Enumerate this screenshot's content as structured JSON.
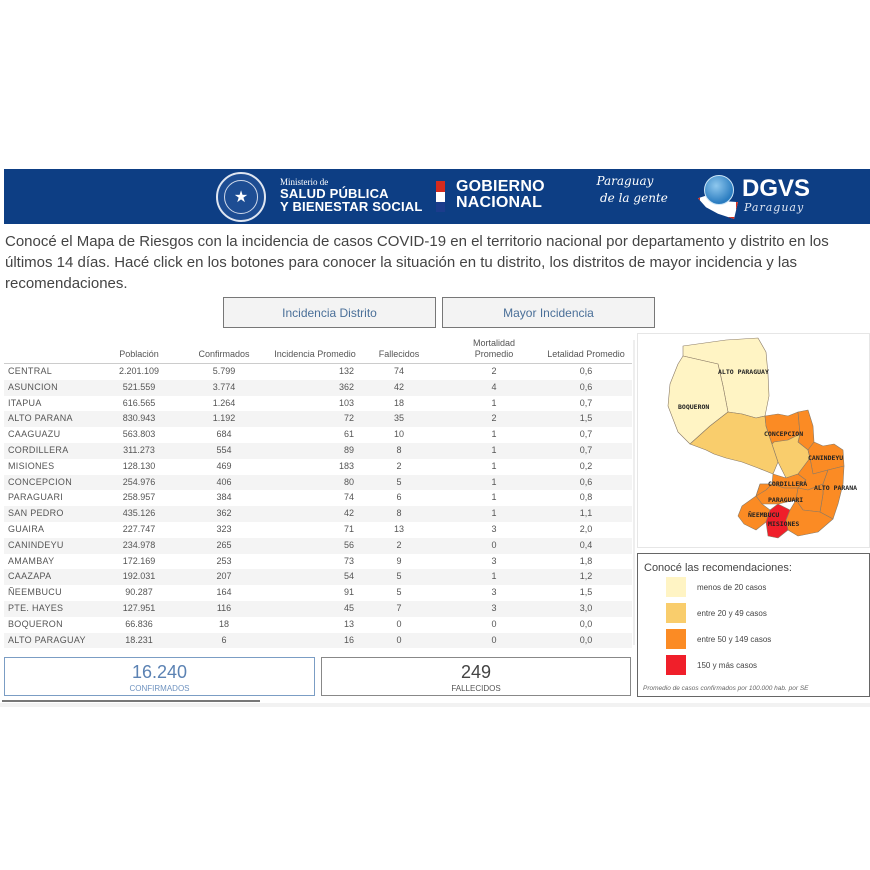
{
  "banner": {
    "ministry_small": "Ministerio de",
    "ministry_line1": "SALUD PÚBLICA",
    "ministry_line2": "Y BIENESTAR SOCIAL",
    "gobierno_line1": "GOBIERNO",
    "gobierno_line2": "NACIONAL",
    "slogan_line1": "Paraguay",
    "slogan_line2": "de la gente",
    "dgvs": "DGVS",
    "dgvs_sub": "Paraguay",
    "colors": {
      "banner_bg": "#0d3e84"
    }
  },
  "intro": "Conocé el Mapa de Riesgos con la incidencia de casos COVID-19 en el territorio nacional por departamento y distrito en los últimos 14 días. Hacé click en los botones para conocer la situación en tu distrito, los distritos de mayor incidencia y las recomendaciones.",
  "buttons": {
    "incidencia_distrito": "Incidencia Distrito",
    "mayor_incidencia": "Mayor Incidencia"
  },
  "table": {
    "headers": [
      "",
      "Población",
      "Confirmados",
      "Incidencia Promedio",
      "Fallecidos",
      "Mortalidad Promedio",
      "Letalidad Promedio"
    ],
    "rows": [
      [
        "CENTRAL",
        "2.201.109",
        "5.799",
        "132",
        "74",
        "2",
        "0,6"
      ],
      [
        "ASUNCION",
        "521.559",
        "3.774",
        "362",
        "42",
        "4",
        "0,6"
      ],
      [
        "ITAPUA",
        "616.565",
        "1.264",
        "103",
        "18",
        "1",
        "0,7"
      ],
      [
        "ALTO PARANA",
        "830.943",
        "1.192",
        "72",
        "35",
        "2",
        "1,5"
      ],
      [
        "CAAGUAZU",
        "563.803",
        "684",
        "61",
        "10",
        "1",
        "0,7"
      ],
      [
        "CORDILLERA",
        "311.273",
        "554",
        "89",
        "8",
        "1",
        "0,7"
      ],
      [
        "MISIONES",
        "128.130",
        "469",
        "183",
        "2",
        "1",
        "0,2"
      ],
      [
        "CONCEPCION",
        "254.976",
        "406",
        "80",
        "5",
        "1",
        "0,6"
      ],
      [
        "PARAGUARI",
        "258.957",
        "384",
        "74",
        "6",
        "1",
        "0,8"
      ],
      [
        "SAN PEDRO",
        "435.126",
        "362",
        "42",
        "8",
        "1",
        "1,1"
      ],
      [
        "GUAIRA",
        "227.747",
        "323",
        "71",
        "13",
        "3",
        "2,0"
      ],
      [
        "CANINDEYU",
        "234.978",
        "265",
        "56",
        "2",
        "0",
        "0,4"
      ],
      [
        "AMAMBAY",
        "172.169",
        "253",
        "73",
        "9",
        "3",
        "1,8"
      ],
      [
        "CAAZAPA",
        "192.031",
        "207",
        "54",
        "5",
        "1",
        "1,2"
      ],
      [
        "ÑEEMBUCU",
        "90.287",
        "164",
        "91",
        "5",
        "3",
        "1,5"
      ],
      [
        "PTE. HAYES",
        "127.951",
        "116",
        "45",
        "7",
        "3",
        "3,0"
      ],
      [
        "BOQUERON",
        "66.836",
        "18",
        "13",
        "0",
        "0",
        "0,0"
      ],
      [
        "ALTO PARAGUAY",
        "18.231",
        "6",
        "16",
        "0",
        "0",
        "0,0"
      ]
    ]
  },
  "kpis": {
    "confirmados_value": "16.240",
    "confirmados_label": "CONFIRMADOS",
    "fallecidos_value": "249",
    "fallecidos_label": "FALLECIDOS"
  },
  "map": {
    "labels": {
      "alto_paraguay": "ALTO PARAGUAY",
      "boqueron": "BOQUERON",
      "concepcion": "CONCEPCION",
      "canindeyu": "CANINDEYU",
      "cordillera": "CORDILLERA",
      "alto_parana": "ALTO PARANA",
      "paraguari": "PARAGUARI",
      "neembucu": "ÑEEMBUCU",
      "misiones": "MISIONES"
    }
  },
  "legend": {
    "title": "Conocé las recomendaciones:",
    "items": [
      {
        "label": "menos de 20 casos",
        "color": "#fff4c4"
      },
      {
        "label": "entre 20 y 49 casos",
        "color": "#f9cd6c"
      },
      {
        "label": "entre 50 y 149 casos",
        "color": "#fb8b24"
      },
      {
        "label": "150 y más casos",
        "color": "#f01f2a"
      }
    ],
    "note": "Promedio de casos confirmados por 100.000 hab. por SE"
  }
}
